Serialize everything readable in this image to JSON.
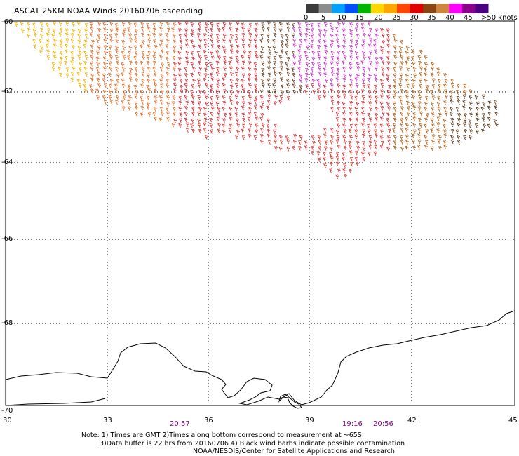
{
  "header": {
    "title": "ASCAT 25KM NOAA Winds 20160706 ascending"
  },
  "legend": {
    "labels": [
      "0",
      "5",
      "10",
      "15",
      "20",
      "25",
      "30",
      "35",
      "40",
      "45",
      ">50 knots"
    ],
    "colors": [
      "#3c3c3c",
      "#8c8c8c",
      "#00a0ff",
      "#0050ff",
      "#00b400",
      "#ffd700",
      "#ffa500",
      "#ff4500",
      "#e00000",
      "#8b4513",
      "#cd853f",
      "#ff00ff",
      "#8b008b",
      "#4b0082"
    ]
  },
  "axes": {
    "lat_labels": [
      "-60",
      "-62",
      "-64",
      "-66",
      "-68",
      "-70"
    ],
    "lon_labels": [
      "30",
      "33",
      "36",
      "39",
      "42",
      "45"
    ]
  },
  "times": [
    "20:57",
    "19:16",
    "20:56"
  ],
  "notes": {
    "line1": "Note: 1) Times are GMT 2)Times along bottom correspond to measurement at ~65S",
    "line2": "3)Data buffer is 22 hrs from 20160706 4) Black wind barbs indicate possible contamination",
    "line3": "NOAA/NESDIS/Center for Satellite Applications and Research"
  }
}
